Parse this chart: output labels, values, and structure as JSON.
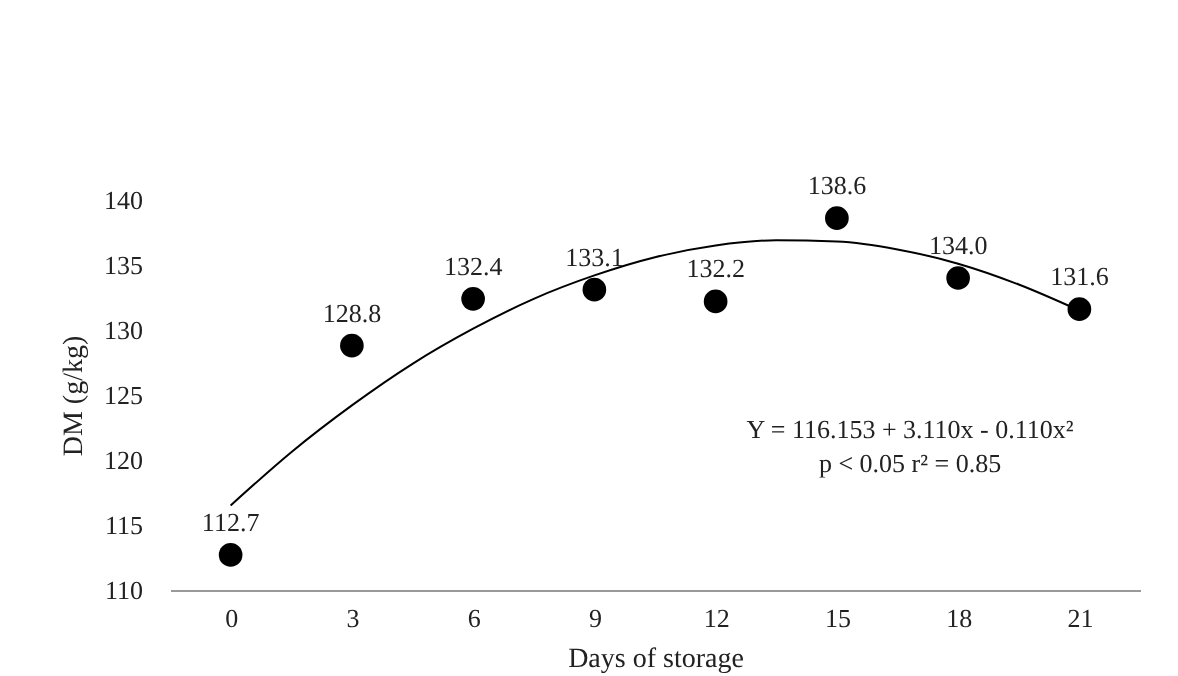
{
  "chart_data": {
    "type": "scatter",
    "xlabel": "Days of storage",
    "ylabel": "DM (g/kg)",
    "x": [
      0,
      3,
      6,
      9,
      12,
      15,
      18,
      21
    ],
    "xlim": [
      -1.5,
      22.5
    ],
    "xticks": [
      0,
      3,
      6,
      9,
      12,
      15,
      18,
      21
    ],
    "ylim": [
      110,
      140
    ],
    "yticks": [
      110,
      115,
      120,
      125,
      130,
      135,
      140
    ],
    "series": [
      {
        "color": "#000000",
        "marker": "circle",
        "values": [
          112.7,
          128.8,
          132.4,
          133.1,
          132.2,
          138.6,
          134.0,
          131.6
        ],
        "value_labels": [
          "112.7",
          "128.8",
          "132.4",
          "133.1",
          "132.2",
          "138.6",
          "134.0",
          "131.6"
        ]
      },
      {
        "type": "line",
        "color": "#000000",
        "line_style": "solid",
        "x": [
          0,
          1.5,
          3,
          4.5,
          6,
          7.5,
          9,
          10.5,
          12,
          13.5,
          15,
          16.5,
          18,
          19.5,
          21
        ],
        "values": [
          116.5,
          120.6,
          124.2,
          127.4,
          130.1,
          132.4,
          134.2,
          135.6,
          136.5,
          136.9,
          136.8,
          136.2,
          135.1,
          133.5,
          131.5
        ]
      }
    ],
    "annotations": [
      "Y = 116.153 + 3.110x - 0.110x²",
      "p < 0.05 r² = 0.85"
    ]
  }
}
